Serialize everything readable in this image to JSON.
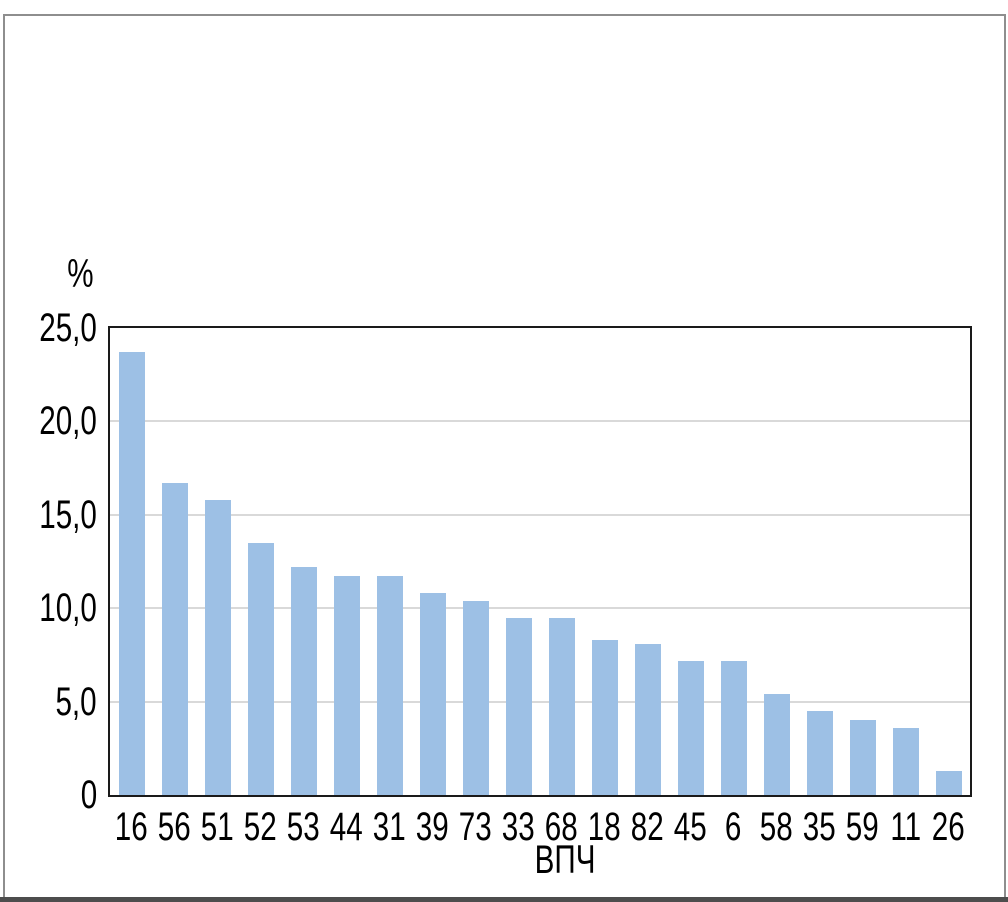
{
  "figure": {
    "type_note": "statistical bar chart figure inside gray page frame"
  },
  "chart_data": {
    "type": "bar",
    "title": "",
    "xlabel": "ВПЧ",
    "ylabel": "%",
    "categories": [
      "16",
      "56",
      "51",
      "52",
      "53",
      "44",
      "31",
      "39",
      "73",
      "33",
      "68",
      "18",
      "82",
      "45",
      "6",
      "58",
      "35",
      "59",
      "11",
      "26"
    ],
    "values": [
      23.7,
      16.7,
      15.8,
      13.5,
      12.2,
      11.7,
      11.7,
      10.8,
      10.4,
      9.5,
      9.5,
      8.3,
      8.1,
      7.2,
      7.2,
      5.4,
      4.5,
      4.0,
      3.6,
      1.3
    ],
    "ylim": [
      0,
      25
    ],
    "ytick_step": 5,
    "ytick_labels": [
      "0",
      "5,0",
      "10,0",
      "15,0",
      "20,0",
      "25,0"
    ],
    "grid": true,
    "legend": "none",
    "colors": {
      "bar": "#9dc0e5",
      "gridline": "#d9d9d9",
      "plot_border": "#1a1a1a",
      "outer_frame": "#8e8e8e",
      "bottom_rule": "#4d4d4d",
      "text": "#000000"
    }
  }
}
